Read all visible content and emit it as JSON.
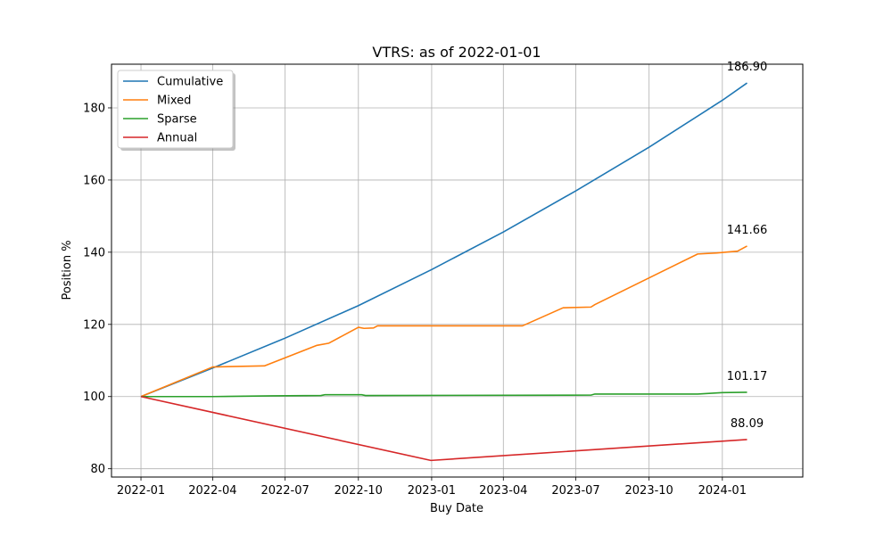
{
  "chart_data": {
    "type": "line",
    "title": "VTRS: as of 2022-01-01",
    "xlabel": "Buy Date",
    "ylabel": "Position %",
    "x_range": [
      "2021-11-25",
      "2024-04-11"
    ],
    "ylim": [
      77.7,
      192.1
    ],
    "x_ticks": [
      {
        "date": "2022-01-01",
        "label": "2022-01"
      },
      {
        "date": "2022-04-01",
        "label": "2022-04"
      },
      {
        "date": "2022-07-01",
        "label": "2022-07"
      },
      {
        "date": "2022-10-01",
        "label": "2022-10"
      },
      {
        "date": "2023-01-01",
        "label": "2023-01"
      },
      {
        "date": "2023-04-01",
        "label": "2023-04"
      },
      {
        "date": "2023-07-01",
        "label": "2023-07"
      },
      {
        "date": "2023-10-01",
        "label": "2023-10"
      },
      {
        "date": "2024-01-01",
        "label": "2024-01"
      }
    ],
    "y_ticks": [
      80,
      100,
      120,
      140,
      160,
      180
    ],
    "grid": true,
    "legend_position": "top-left",
    "series": [
      {
        "name": "Cumulative",
        "color": "#1f77b4",
        "end_label": "186.90",
        "points": [
          [
            "2022-01-01",
            100
          ],
          [
            "2022-04-01",
            107.9
          ],
          [
            "2022-07-01",
            116.2
          ],
          [
            "2022-10-01",
            125.2
          ],
          [
            "2023-01-01",
            135.2
          ],
          [
            "2023-04-01",
            145.6
          ],
          [
            "2023-07-01",
            157.0
          ],
          [
            "2023-10-01",
            169.1
          ],
          [
            "2024-01-01",
            182.1
          ],
          [
            "2024-02-01",
            186.9
          ]
        ]
      },
      {
        "name": "Mixed",
        "color": "#ff7f0e",
        "end_label": "141.66",
        "points": [
          [
            "2022-01-01",
            100
          ],
          [
            "2022-04-01",
            108.2
          ],
          [
            "2022-06-05",
            108.5
          ],
          [
            "2022-08-10",
            114.2
          ],
          [
            "2022-08-25",
            114.8
          ],
          [
            "2022-10-01",
            119.2
          ],
          [
            "2022-10-08",
            118.9
          ],
          [
            "2022-10-20",
            119.0
          ],
          [
            "2022-10-25",
            119.6
          ],
          [
            "2023-04-25",
            119.6
          ],
          [
            "2023-06-15",
            124.6
          ],
          [
            "2023-07-20",
            124.8
          ],
          [
            "2023-07-25",
            125.5
          ],
          [
            "2023-12-01",
            139.5
          ],
          [
            "2023-12-25",
            139.8
          ],
          [
            "2024-01-10",
            140.1
          ],
          [
            "2024-01-20",
            140.3
          ],
          [
            "2024-02-01",
            141.7
          ]
        ]
      },
      {
        "name": "Sparse",
        "color": "#2ca02c",
        "end_label": "101.17",
        "points": [
          [
            "2022-01-01",
            100
          ],
          [
            "2022-04-01",
            100.0
          ],
          [
            "2022-06-15",
            100.2
          ],
          [
            "2022-08-15",
            100.3
          ],
          [
            "2022-08-20",
            100.5
          ],
          [
            "2022-10-05",
            100.5
          ],
          [
            "2022-10-10",
            100.3
          ],
          [
            "2023-07-20",
            100.4
          ],
          [
            "2023-07-25",
            100.7
          ],
          [
            "2023-12-01",
            100.7
          ],
          [
            "2024-01-01",
            101.1
          ],
          [
            "2024-02-01",
            101.2
          ]
        ]
      },
      {
        "name": "Annual",
        "color": "#d62728",
        "end_label": "88.09",
        "points": [
          [
            "2022-01-01",
            100
          ],
          [
            "2022-12-31",
            82.3
          ],
          [
            "2024-02-01",
            88.1
          ]
        ]
      }
    ]
  }
}
